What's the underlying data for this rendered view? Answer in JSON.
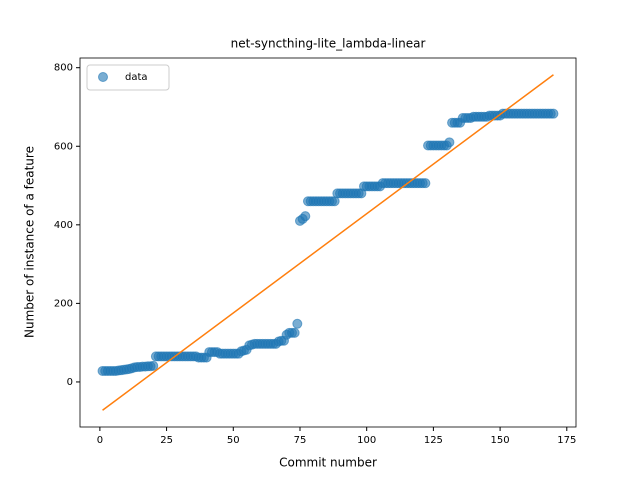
{
  "chart_data": {
    "type": "scatter",
    "title": "net-syncthing-lite_lambda-linear",
    "xlabel": "Commit number",
    "ylabel": "Number of instance of a feature",
    "xlim": [
      -7.45,
      178.45
    ],
    "ylim": [
      -114.7,
      824.7
    ],
    "xticks": [
      0,
      25,
      50,
      75,
      100,
      125,
      150,
      175
    ],
    "yticks": [
      0,
      200,
      400,
      600,
      800
    ],
    "legend": "upper left",
    "series": [
      {
        "name": "data",
        "color": "#1f77b4",
        "x": [
          1,
          2,
          3,
          4,
          5,
          6,
          7,
          8,
          9,
          10,
          11,
          12,
          13,
          14,
          15,
          16,
          17,
          18,
          19,
          20,
          21,
          22,
          23,
          24,
          25,
          26,
          27,
          28,
          29,
          30,
          31,
          32,
          33,
          34,
          35,
          36,
          37,
          38,
          39,
          40,
          41,
          42,
          43,
          44,
          45,
          46,
          47,
          48,
          49,
          50,
          51,
          52,
          53,
          54,
          55,
          56,
          57,
          58,
          59,
          60,
          61,
          62,
          63,
          64,
          65,
          66,
          67,
          68,
          69,
          70,
          71,
          72,
          73,
          74,
          75,
          76,
          77,
          78,
          79,
          80,
          81,
          82,
          83,
          84,
          85,
          86,
          87,
          88,
          89,
          90,
          91,
          92,
          93,
          94,
          95,
          96,
          97,
          98,
          99,
          100,
          101,
          102,
          103,
          104,
          105,
          106,
          107,
          108,
          109,
          110,
          111,
          112,
          113,
          114,
          115,
          116,
          117,
          118,
          119,
          120,
          121,
          122,
          123,
          124,
          125,
          126,
          127,
          128,
          129,
          130,
          131,
          132,
          133,
          134,
          135,
          136,
          137,
          138,
          139,
          140,
          141,
          142,
          143,
          144,
          145,
          146,
          147,
          148,
          149,
          150,
          151,
          152,
          153,
          154,
          155,
          156,
          157,
          158,
          159,
          160,
          161,
          162,
          163,
          164,
          165,
          166,
          167,
          168,
          169,
          170
        ],
        "values": [
          28,
          28,
          28,
          28,
          28,
          28,
          29,
          30,
          31,
          32,
          33,
          35,
          37,
          38,
          38,
          39,
          39,
          40,
          40,
          41,
          65,
          65,
          65,
          65,
          65,
          65,
          65,
          65,
          65,
          65,
          65,
          65,
          65,
          65,
          65,
          65,
          62,
          62,
          62,
          62,
          76,
          76,
          76,
          76,
          72,
          72,
          72,
          72,
          72,
          72,
          72,
          72,
          78,
          80,
          82,
          93,
          95,
          97,
          97,
          97,
          97,
          97,
          97,
          97,
          97,
          97,
          103,
          105,
          105,
          120,
          125,
          125,
          125,
          148,
          410,
          415,
          422,
          460,
          460,
          460,
          460,
          460,
          460,
          460,
          460,
          460,
          460,
          460,
          480,
          480,
          480,
          480,
          480,
          480,
          480,
          480,
          480,
          480,
          498,
          498,
          498,
          498,
          498,
          498,
          498,
          506,
          506,
          506,
          506,
          506,
          506,
          506,
          506,
          506,
          506,
          506,
          506,
          506,
          506,
          506,
          506,
          506,
          602,
          602,
          602,
          602,
          602,
          602,
          602,
          602,
          610,
          660,
          660,
          660,
          660,
          672,
          672,
          672,
          672,
          675,
          675,
          675,
          675,
          675,
          675,
          678,
          678,
          678,
          678,
          678,
          683,
          683,
          683,
          683,
          683,
          683,
          683,
          683,
          683,
          683,
          683,
          683,
          683,
          683,
          683,
          683,
          683,
          683,
          683,
          683
        ]
      },
      {
        "type": "line",
        "color": "#ff7f0e",
        "x": [
          1,
          170
        ],
        "values": [
          -72,
          782
        ]
      }
    ]
  }
}
